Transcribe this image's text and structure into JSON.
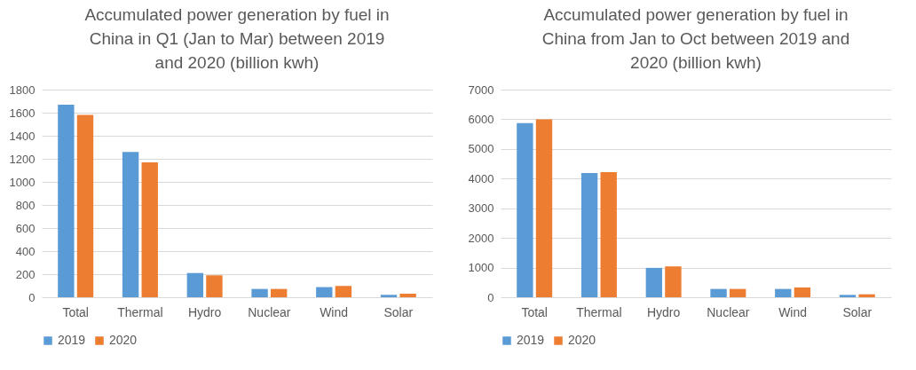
{
  "chart_data": [
    {
      "type": "bar",
      "title": "Accumulated power generation by fuel in China in Q1 (Jan to Mar) between 2019 and 2020 (billion kwh)",
      "categories": [
        "Total",
        "Thermal",
        "Hydro",
        "Nuclear",
        "Wind",
        "Solar"
      ],
      "series": [
        {
          "name": "2019",
          "color": "#5b9bd5",
          "values": [
            1670,
            1260,
            210,
            72,
            88,
            21
          ]
        },
        {
          "name": "2020",
          "color": "#ed7d31",
          "values": [
            1580,
            1170,
            190,
            72,
            98,
            31
          ]
        }
      ],
      "ylim": [
        0,
        1800
      ],
      "yticks": [
        0,
        200,
        400,
        600,
        800,
        1000,
        1200,
        1400,
        1600,
        1800
      ],
      "grid": "y",
      "legend": "bottom"
    },
    {
      "type": "bar",
      "title": "Accumulated power generation by fuel in China from Jan to Oct between 2019 and 2020 (billion kwh)",
      "categories": [
        "Total",
        "Thermal",
        "Hydro",
        "Nuclear",
        "Wind",
        "Solar"
      ],
      "series": [
        {
          "name": "2019",
          "color": "#5b9bd5",
          "values": [
            5870,
            4190,
            990,
            280,
            280,
            80
          ]
        },
        {
          "name": "2020",
          "color": "#ed7d31",
          "values": [
            6000,
            4220,
            1040,
            280,
            330,
            100
          ]
        }
      ],
      "ylim": [
        0,
        7000
      ],
      "yticks": [
        0,
        1000,
        2000,
        3000,
        4000,
        5000,
        6000,
        7000
      ],
      "grid": "y",
      "legend": "bottom"
    }
  ]
}
